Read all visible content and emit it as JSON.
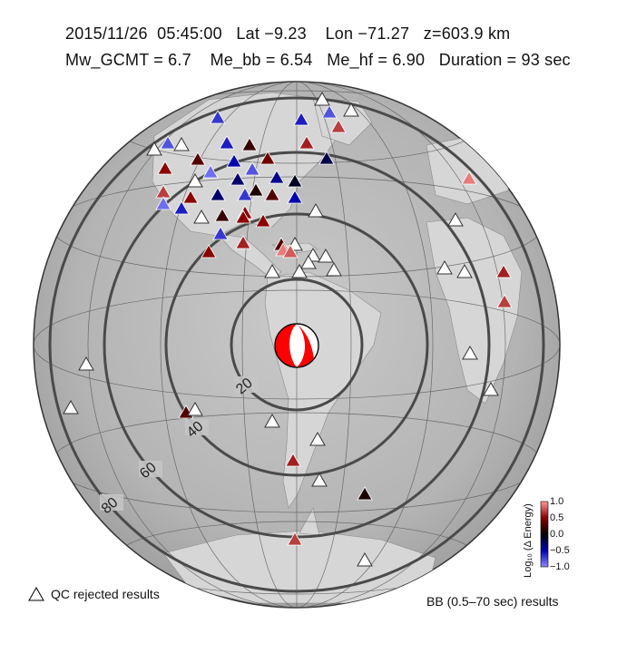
{
  "header": {
    "line1": "2015/11/26  05:45:00   Lat −9.23    Lon −71.27   z=603.9 km",
    "line2": "Mw_GCMT = 6.7    Me_bb = 6.54   Me_hf = 6.90   Duration = 93 sec"
  },
  "distance_rings": [
    {
      "deg": 20,
      "label": "20"
    },
    {
      "deg": 40,
      "label": "40"
    },
    {
      "deg": 60,
      "label": "60"
    },
    {
      "deg": 80,
      "label": "80"
    }
  ],
  "colorbar": {
    "title": "Log₁₀ (Δ Energy)",
    "ticks": [
      "1.0",
      "0.5",
      "0.0",
      "−0.5",
      "−1.0"
    ],
    "range": [
      -1.0,
      1.0
    ],
    "colors": {
      "high": "#8b0000",
      "mid": "#000000",
      "low": "#0000b0",
      "low_light": "#8a8aff",
      "high_light": "#ff9a9a"
    }
  },
  "legend": {
    "qc_rejected": "QC rejected results",
    "bb_results": "BB (0.5–70 sec) results"
  },
  "beachball": {
    "colors": [
      "#ff0000",
      "#ffffff"
    ]
  },
  "stations": [
    {
      "v": -0.7,
      "qc": false
    },
    {
      "v": -0.8,
      "qc": false
    },
    {
      "v": 0.5,
      "qc": false
    },
    {
      "v": 0.3,
      "qc": false
    },
    {
      "v": -0.9,
      "qc": false
    },
    {
      "v": -0.5,
      "qc": false
    },
    {
      "v": -0.6,
      "qc": false
    },
    {
      "v": 0.2,
      "qc": false
    },
    {
      "v": 0.4,
      "qc": false
    },
    {
      "v": -0.8,
      "qc": false
    },
    {
      "v": -0.7,
      "qc": false
    },
    {
      "v": -0.3,
      "qc": false
    },
    {
      "v": 0.1,
      "qc": false
    },
    {
      "v": 0.3,
      "qc": false
    },
    {
      "v": -0.4,
      "qc": false
    },
    {
      "v": -0.1,
      "qc": false
    },
    {
      "v": 0.0,
      "qc": true
    },
    {
      "v": -0.5,
      "qc": false
    },
    {
      "v": 0.6,
      "qc": false
    },
    {
      "v": 0.7,
      "qc": false
    },
    {
      "v": -0.6,
      "qc": false
    },
    {
      "v": -0.9,
      "qc": false
    },
    {
      "v": -0.3,
      "qc": false
    },
    {
      "v": 0.5,
      "qc": false
    },
    {
      "v": 0.0,
      "qc": true
    },
    {
      "v": 0.2,
      "qc": false
    },
    {
      "v": 0.5,
      "qc": false
    },
    {
      "v": -0.7,
      "qc": false
    },
    {
      "v": 0.5,
      "qc": false
    },
    {
      "v": 0.6,
      "qc": false
    },
    {
      "v": 0.3,
      "qc": false
    },
    {
      "v": 0.0,
      "qc": true
    },
    {
      "v": 0.0,
      "qc": true
    },
    {
      "v": -0.8,
      "qc": false
    },
    {
      "v": -0.6,
      "qc": false
    },
    {
      "v": -0.2,
      "qc": false
    },
    {
      "v": 0.7,
      "qc": false
    },
    {
      "v": 0.5,
      "qc": false
    },
    {
      "v": 0.9,
      "qc": false
    },
    {
      "v": 0.0,
      "qc": true
    },
    {
      "v": 0.0,
      "qc": true
    },
    {
      "v": 0.8,
      "qc": false
    },
    {
      "v": 0.0,
      "qc": true
    },
    {
      "v": 0.0,
      "qc": true
    },
    {
      "v": 0.0,
      "qc": true
    },
    {
      "v": 0.6,
      "qc": false
    },
    {
      "v": 0.7,
      "qc": false
    },
    {
      "v": 0.9,
      "qc": false
    },
    {
      "v": 0.0,
      "qc": true
    },
    {
      "v": 0.0,
      "qc": true
    },
    {
      "v": 0.0,
      "qc": true
    },
    {
      "v": 0.0,
      "qc": true
    },
    {
      "v": 0.3,
      "qc": false
    },
    {
      "v": 0.0,
      "qc": true
    },
    {
      "v": 0.0,
      "qc": true
    },
    {
      "v": 0.1,
      "qc": false
    },
    {
      "v": 0.7,
      "qc": false
    },
    {
      "v": 0.0,
      "qc": true
    },
    {
      "v": 0.0,
      "qc": true
    },
    {
      "v": 0.0,
      "qc": true
    },
    {
      "v": 0.6,
      "qc": false
    },
    {
      "v": 0.0,
      "qc": true
    },
    {
      "v": 0.0,
      "qc": true
    },
    {
      "v": 0.0,
      "qc": true
    },
    {
      "v": 0.5,
      "qc": false
    },
    {
      "v": 0.0,
      "qc": true
    },
    {
      "v": 0.0,
      "qc": true
    },
    {
      "v": 0.0,
      "qc": true
    },
    {
      "v": 0.0,
      "qc": true
    },
    {
      "v": 0.0,
      "qc": true
    }
  ]
}
